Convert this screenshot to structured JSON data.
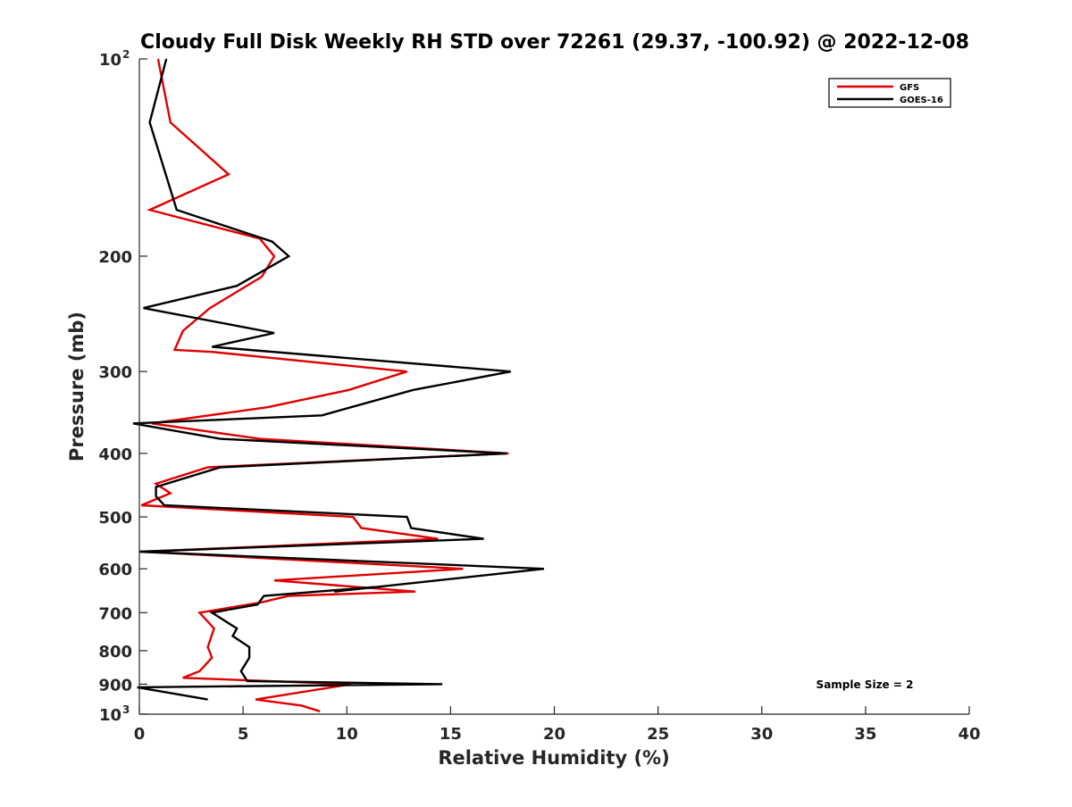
{
  "chart_data": {
    "type": "line",
    "title": "Cloudy Full Disk Weekly RH STD over 72261 (29.37, -100.92) @ 2022-12-08",
    "xlabel": "Relative Humidity (%)",
    "ylabel": "Pressure (mb)",
    "xlim": [
      0,
      40
    ],
    "ylim": [
      100,
      1000
    ],
    "y_scale": "log",
    "y_reversed": true,
    "x_ticks": [
      0,
      5,
      10,
      15,
      20,
      25,
      30,
      35,
      40
    ],
    "x_tick_labels": [
      "0",
      "5",
      "10",
      "15",
      "20",
      "25",
      "30",
      "35",
      "40"
    ],
    "y_ticks": [
      100,
      200,
      300,
      400,
      500,
      600,
      700,
      800,
      900,
      1000
    ],
    "y_tick_labels": [
      {
        "base": "10",
        "exp": "2"
      },
      {
        "base": "200",
        "exp": ""
      },
      {
        "base": "300",
        "exp": ""
      },
      {
        "base": "400",
        "exp": ""
      },
      {
        "base": "500",
        "exp": ""
      },
      {
        "base": "600",
        "exp": ""
      },
      {
        "base": "700",
        "exp": ""
      },
      {
        "base": "800",
        "exp": ""
      },
      {
        "base": "900",
        "exp": ""
      },
      {
        "base": "10",
        "exp": "3"
      }
    ],
    "grid": false,
    "legend_position": "top-right",
    "annotation": "Sample Size = 2",
    "series": [
      {
        "name": "GFS",
        "color": "#e00000",
        "points": [
          [
            0.9,
            100
          ],
          [
            1.5,
            125
          ],
          [
            4.3,
            150
          ],
          [
            0.5,
            170
          ],
          [
            5.8,
            188
          ],
          [
            6.5,
            200
          ],
          [
            5.9,
            215
          ],
          [
            3.4,
            240
          ],
          [
            2.1,
            260
          ],
          [
            1.7,
            278
          ],
          [
            3.5,
            280
          ],
          [
            12.9,
            300
          ],
          [
            10.1,
            320
          ],
          [
            6.2,
            340
          ],
          [
            0.6,
            360
          ],
          [
            5.8,
            380
          ],
          [
            17.8,
            400
          ],
          [
            3.3,
            420
          ],
          [
            0.8,
            445
          ],
          [
            1.5,
            460
          ],
          [
            0.1,
            480
          ],
          [
            10.3,
            500
          ],
          [
            10.7,
            520
          ],
          [
            14.4,
            540
          ],
          [
            0.2,
            565
          ],
          [
            15.6,
            600
          ],
          [
            6.5,
            625
          ],
          [
            13.3,
            650
          ],
          [
            7.2,
            660
          ],
          [
            5.9,
            675
          ],
          [
            2.9,
            700
          ],
          [
            3.6,
            740
          ],
          [
            3.3,
            790
          ],
          [
            3.5,
            820
          ],
          [
            2.9,
            860
          ],
          [
            2.1,
            880
          ],
          [
            10.2,
            900
          ],
          [
            5.6,
            950
          ],
          [
            7.8,
            970
          ],
          [
            8.7,
            990
          ]
        ]
      },
      {
        "name": "GOES-16",
        "color": "#000000",
        "points": [
          [
            1.3,
            100
          ],
          [
            0.5,
            125
          ],
          [
            1.8,
            170
          ],
          [
            6.4,
            190
          ],
          [
            7.2,
            200
          ],
          [
            4.7,
            222
          ],
          [
            0.2,
            240
          ],
          [
            6.5,
            262
          ],
          [
            3.5,
            275
          ],
          [
            17.9,
            300
          ],
          [
            13.2,
            320
          ],
          [
            8.8,
            350
          ],
          [
            -0.3,
            360
          ],
          [
            3.9,
            380
          ],
          [
            17.7,
            400
          ],
          [
            3.9,
            420
          ],
          [
            0.8,
            450
          ],
          [
            0.8,
            465
          ],
          [
            1.2,
            480
          ],
          [
            12.9,
            500
          ],
          [
            13.1,
            520
          ],
          [
            16.6,
            540
          ],
          [
            0.0,
            565
          ],
          [
            19.5,
            600
          ],
          [
            9.4,
            650
          ],
          [
            11.3,
            640
          ],
          [
            6.0,
            660
          ],
          [
            5.7,
            680
          ],
          [
            3.5,
            700
          ],
          [
            4.7,
            740
          ],
          [
            4.5,
            760
          ],
          [
            5.3,
            790
          ],
          [
            5.3,
            820
          ],
          [
            4.9,
            860
          ],
          [
            5.2,
            890
          ],
          [
            14.6,
            900
          ],
          [
            -0.1,
            910
          ],
          [
            3.3,
            950
          ]
        ]
      }
    ]
  }
}
